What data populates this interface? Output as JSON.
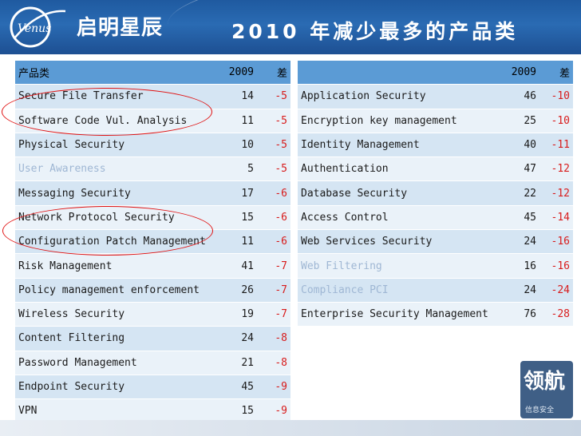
{
  "header": {
    "brand": "启明星辰",
    "logo_text": "Venus",
    "title": "2010 年减少最多的产品类"
  },
  "left_table": {
    "columns": [
      "产品类",
      "2009",
      "差"
    ],
    "rows": [
      {
        "name": "Secure File Transfer",
        "y2009": "14",
        "diff": "-5",
        "faded": false
      },
      {
        "name": "Software Code Vul. Analysis",
        "y2009": "11",
        "diff": "-5",
        "faded": false
      },
      {
        "name": "Physical Security",
        "y2009": "10",
        "diff": "-5",
        "faded": false
      },
      {
        "name": "User Awareness",
        "y2009": "5",
        "diff": "-5",
        "faded": true
      },
      {
        "name": "Messaging Security",
        "y2009": "17",
        "diff": "-6",
        "faded": false
      },
      {
        "name": "Network Protocol Security",
        "y2009": "15",
        "diff": "-6",
        "faded": false
      },
      {
        "name": "Configuration Patch Management",
        "y2009": "11",
        "diff": "-6",
        "faded": false
      },
      {
        "name": "Risk Management",
        "y2009": "41",
        "diff": "-7",
        "faded": false
      },
      {
        "name": "Policy management enforcement",
        "y2009": "26",
        "diff": "-7",
        "faded": false
      },
      {
        "name": "Wireless Security",
        "y2009": "19",
        "diff": "-7",
        "faded": false
      },
      {
        "name": "Content Filtering",
        "y2009": "24",
        "diff": "-8",
        "faded": false
      },
      {
        "name": "Password Management",
        "y2009": "21",
        "diff": "-8",
        "faded": false
      },
      {
        "name": "Endpoint Security",
        "y2009": "45",
        "diff": "-9",
        "faded": false
      },
      {
        "name": "VPN",
        "y2009": "15",
        "diff": "-9",
        "faded": false
      }
    ]
  },
  "right_table": {
    "columns": [
      "",
      "2009",
      "差"
    ],
    "rows": [
      {
        "name": "Application Security",
        "y2009": "46",
        "diff": "-10",
        "faded": false
      },
      {
        "name": "Encryption key management",
        "y2009": "25",
        "diff": "-10",
        "faded": false
      },
      {
        "name": "Identity Management",
        "y2009": "40",
        "diff": "-11",
        "faded": false
      },
      {
        "name": "Authentication",
        "y2009": "47",
        "diff": "-12",
        "faded": false
      },
      {
        "name": "Database Security",
        "y2009": "22",
        "diff": "-12",
        "faded": false
      },
      {
        "name": "Access Control",
        "y2009": "45",
        "diff": "-14",
        "faded": false
      },
      {
        "name": "Web Services Security",
        "y2009": "24",
        "diff": "-16",
        "faded": false
      },
      {
        "name": "Web Filtering",
        "y2009": "16",
        "diff": "-16",
        "faded": true
      },
      {
        "name": "Compliance PCI",
        "y2009": "24",
        "diff": "-24",
        "faded": true
      },
      {
        "name": "Enterprise Security Management",
        "y2009": "76",
        "diff": "-28",
        "faded": false
      }
    ]
  },
  "seal": {
    "text_big": "领航",
    "text_small": "信息安全"
  },
  "colors": {
    "header_blue": "#2a6bb3",
    "table_header": "#5b9bd5",
    "row_odd": "#d5e5f3",
    "row_even": "#eaf2f9",
    "negative": "#d81c1c",
    "highlight_circle": "#e01010"
  }
}
